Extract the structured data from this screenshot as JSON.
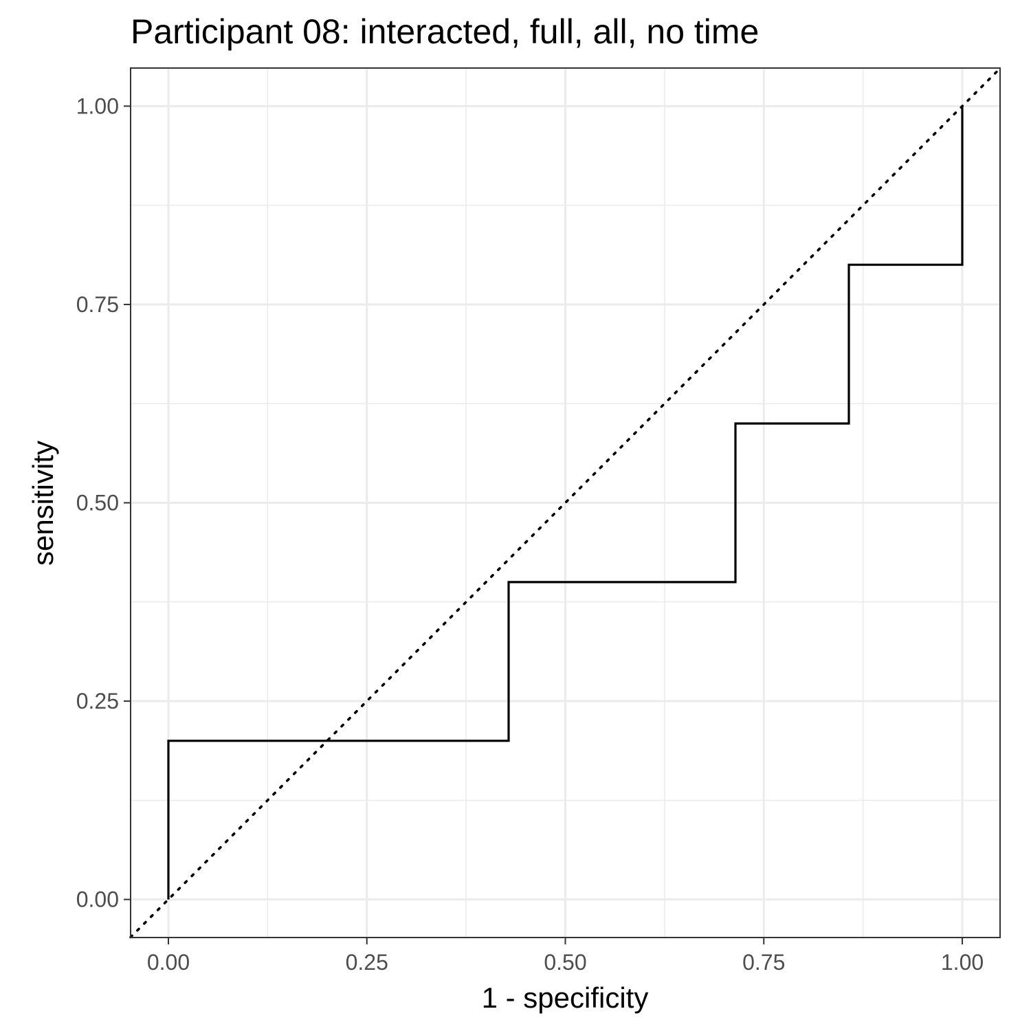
{
  "chart_data": {
    "type": "line",
    "title": "Participant 08: interacted, full, all, no time",
    "xlabel": "1 - specificity",
    "ylabel": "sensitivity",
    "xlim": [
      -0.0476,
      1.0476
    ],
    "ylim": [
      -0.048,
      1.048
    ],
    "x_ticks": [
      "0.00",
      "0.25",
      "0.50",
      "0.75",
      "1.00"
    ],
    "y_ticks": [
      "0.00",
      "0.25",
      "0.50",
      "0.75",
      "1.00"
    ],
    "grid": true,
    "series": [
      {
        "style": "step",
        "color": "#000000",
        "x": [
          0.0,
          0.0,
          0.4286,
          0.4286,
          0.7143,
          0.7143,
          0.8571,
          0.8571,
          1.0,
          1.0
        ],
        "y": [
          0.0,
          0.2,
          0.2,
          0.4,
          0.4,
          0.6,
          0.6,
          0.8,
          0.8,
          1.0
        ]
      },
      {
        "style": "dotted",
        "color": "#000000",
        "x": [
          -0.0476,
          1.0476
        ],
        "y": [
          -0.0476,
          1.0476
        ]
      }
    ]
  }
}
